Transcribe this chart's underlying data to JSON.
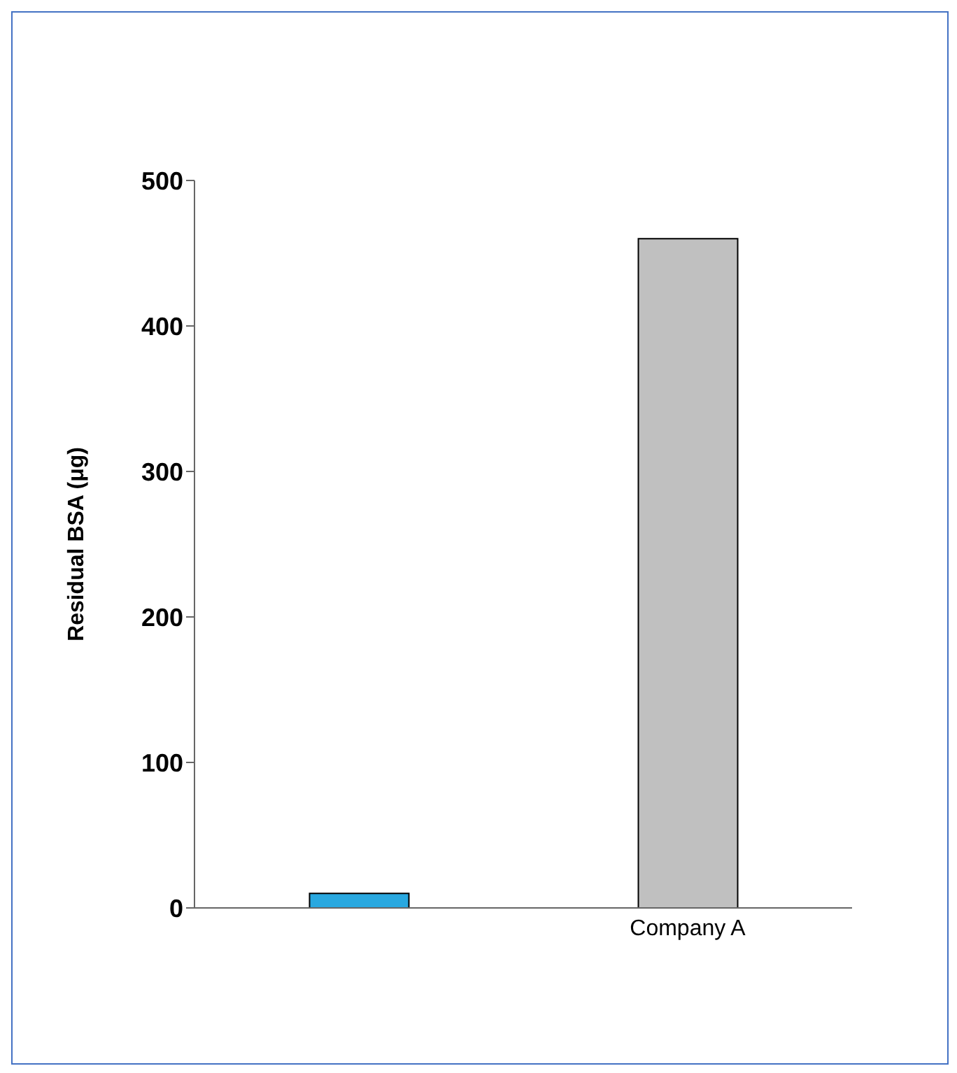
{
  "chart_data": {
    "type": "bar",
    "ylabel": "Residual BSA (μg)",
    "categories": [
      null,
      "Company A"
    ],
    "values": [
      10,
      460
    ],
    "colors": [
      "#29a8e0",
      "#c0c0c0"
    ],
    "ylim": [
      0,
      500
    ],
    "yticks": [
      0,
      100,
      200,
      300,
      400,
      500
    ],
    "grid": false,
    "legend": false
  }
}
